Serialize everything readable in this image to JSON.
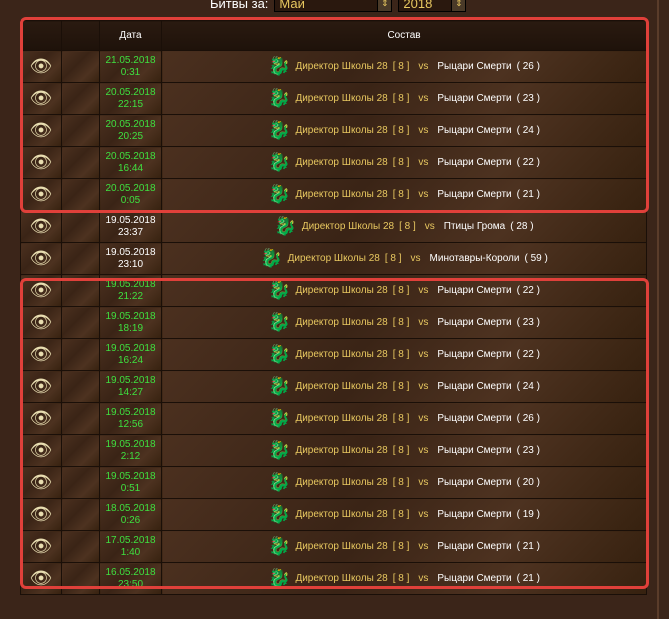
{
  "filter": {
    "label": "Битвы за:",
    "month": "Май",
    "year": "2018"
  },
  "headers": {
    "date": "Дата",
    "composition": "Состав"
  },
  "rows": [
    {
      "date": "21.05.2018",
      "time": "0:31",
      "player": "Директор Школы 28",
      "level": "[ 8 ]",
      "vs": "vs",
      "team": "Рыцари Смерти",
      "count": "( 26 )",
      "win": true
    },
    {
      "date": "20.05.2018",
      "time": "22:15",
      "player": "Директор Школы 28",
      "level": "[ 8 ]",
      "vs": "vs",
      "team": "Рыцари Смерти",
      "count": "( 23 )",
      "win": true
    },
    {
      "date": "20.05.2018",
      "time": "20:25",
      "player": "Директор Школы 28",
      "level": "[ 8 ]",
      "vs": "vs",
      "team": "Рыцари Смерти",
      "count": "( 24 )",
      "win": true
    },
    {
      "date": "20.05.2018",
      "time": "16:44",
      "player": "Директор Школы 28",
      "level": "[ 8 ]",
      "vs": "vs",
      "team": "Рыцари Смерти",
      "count": "( 22 )",
      "win": true
    },
    {
      "date": "20.05.2018",
      "time": "0:05",
      "player": "Директор Школы 28",
      "level": "[ 8 ]",
      "vs": "vs",
      "team": "Рыцари Смерти",
      "count": "( 21 )",
      "win": true
    },
    {
      "date": "19.05.2018",
      "time": "23:37",
      "player": "Директор Школы 28",
      "level": "[ 8 ]",
      "vs": "vs",
      "team": "Птицы Грома",
      "count": "( 28 )",
      "win": false
    },
    {
      "date": "19.05.2018",
      "time": "23:10",
      "player": "Директор Школы 28",
      "level": "[ 8 ]",
      "vs": "vs",
      "team": "Минотавры-Короли",
      "count": "( 59 )",
      "win": false
    },
    {
      "date": "19.05.2018",
      "time": "21:22",
      "player": "Директор Школы 28",
      "level": "[ 8 ]",
      "vs": "vs",
      "team": "Рыцари Смерти",
      "count": "( 22 )",
      "win": true
    },
    {
      "date": "19.05.2018",
      "time": "18:19",
      "player": "Директор Школы 28",
      "level": "[ 8 ]",
      "vs": "vs",
      "team": "Рыцари Смерти",
      "count": "( 23 )",
      "win": true
    },
    {
      "date": "19.05.2018",
      "time": "16:24",
      "player": "Директор Школы 28",
      "level": "[ 8 ]",
      "vs": "vs",
      "team": "Рыцари Смерти",
      "count": "( 22 )",
      "win": true
    },
    {
      "date": "19.05.2018",
      "time": "14:27",
      "player": "Директор Школы 28",
      "level": "[ 8 ]",
      "vs": "vs",
      "team": "Рыцари Смерти",
      "count": "( 24 )",
      "win": true
    },
    {
      "date": "19.05.2018",
      "time": "12:56",
      "player": "Директор Школы 28",
      "level": "[ 8 ]",
      "vs": "vs",
      "team": "Рыцари Смерти",
      "count": "( 26 )",
      "win": true
    },
    {
      "date": "19.05.2018",
      "time": "2:12",
      "player": "Директор Школы 28",
      "level": "[ 8 ]",
      "vs": "vs",
      "team": "Рыцари Смерти",
      "count": "( 23 )",
      "win": true
    },
    {
      "date": "19.05.2018",
      "time": "0:51",
      "player": "Директор Школы 28",
      "level": "[ 8 ]",
      "vs": "vs",
      "team": "Рыцари Смерти",
      "count": "( 20 )",
      "win": true
    },
    {
      "date": "18.05.2018",
      "time": "0:26",
      "player": "Директор Школы 28",
      "level": "[ 8 ]",
      "vs": "vs",
      "team": "Рыцари Смерти",
      "count": "( 19 )",
      "win": true
    },
    {
      "date": "17.05.2018",
      "time": "1:40",
      "player": "Директор Школы 28",
      "level": "[ 8 ]",
      "vs": "vs",
      "team": "Рыцари Смерти",
      "count": "( 21 )",
      "win": true
    },
    {
      "date": "16.05.2018",
      "time": "23:50",
      "player": "Директор Школы 28",
      "level": "[ 8 ]",
      "vs": "vs",
      "team": "Рыцари Смерти",
      "count": "( 21 )",
      "win": true
    }
  ],
  "colors": {
    "win_date": "#3fe03f",
    "highlight": "#e0403a",
    "gold": "#e8c860"
  }
}
